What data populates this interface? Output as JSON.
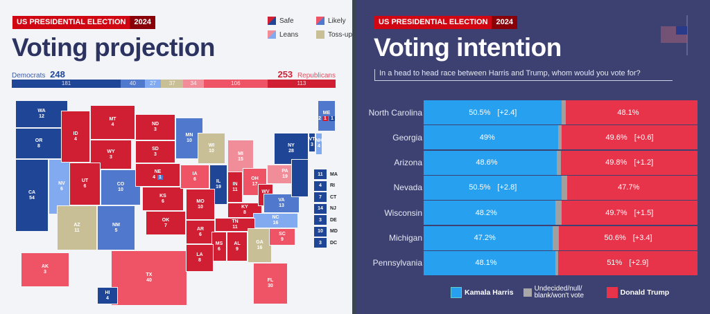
{
  "left": {
    "tag": {
      "label": "US PRESIDENTIAL ELECTION",
      "year": "2024"
    },
    "title": "Voting projection",
    "legend": [
      {
        "label": "Safe"
      },
      {
        "label": "Likely"
      },
      {
        "label": "Leans"
      },
      {
        "label": "Toss-up"
      }
    ],
    "democrats": {
      "label": "Democrats",
      "total": "248"
    },
    "republicans": {
      "label": "Republicans",
      "total": "253"
    }
  },
  "colors": {
    "safe_d": "#1f4597",
    "likely_d": "#5078cc",
    "lean_d": "#82aaf0",
    "tossup": "#c9bf97",
    "lean_r": "#f08d99",
    "likely_r": "#ee5466",
    "safe_r": "#d01f33"
  },
  "chart_data": [
    {
      "type": "bar",
      "title": "Voting projection",
      "stacked": true,
      "categories": [
        "Safe D",
        "Likely D",
        "Lean D",
        "Toss-up",
        "Lean R",
        "Likely R",
        "Safe R"
      ],
      "values": [
        181,
        40,
        27,
        37,
        34,
        106,
        113
      ],
      "states": [
        {
          "abbr": "WA",
          "votes": "12",
          "rating": "safe_d"
        },
        {
          "abbr": "OR",
          "votes": "8",
          "rating": "safe_d"
        },
        {
          "abbr": "CA",
          "votes": "54",
          "rating": "safe_d"
        },
        {
          "abbr": "NV",
          "votes": "6",
          "rating": "lean_d"
        },
        {
          "abbr": "ID",
          "votes": "4",
          "rating": "safe_r"
        },
        {
          "abbr": "MT",
          "votes": "4",
          "rating": "safe_r"
        },
        {
          "abbr": "WY",
          "votes": "3",
          "rating": "safe_r"
        },
        {
          "abbr": "UT",
          "votes": "6",
          "rating": "safe_r"
        },
        {
          "abbr": "CO",
          "votes": "10",
          "rating": "likely_d"
        },
        {
          "abbr": "AZ",
          "votes": "11",
          "rating": "tossup"
        },
        {
          "abbr": "NM",
          "votes": "5",
          "rating": "likely_d"
        },
        {
          "abbr": "ND",
          "votes": "3",
          "rating": "safe_r"
        },
        {
          "abbr": "SD",
          "votes": "3",
          "rating": "safe_r"
        },
        {
          "abbr": "NE",
          "votes": "4",
          "rating": "safe_r"
        },
        {
          "abbr": "KS",
          "votes": "6",
          "rating": "safe_r"
        },
        {
          "abbr": "OK",
          "votes": "7",
          "rating": "safe_r"
        },
        {
          "abbr": "TX",
          "votes": "40",
          "rating": "likely_r"
        },
        {
          "abbr": "AK",
          "votes": "3",
          "rating": "likely_r"
        },
        {
          "abbr": "HI",
          "votes": "4",
          "rating": "safe_d"
        },
        {
          "abbr": "MN",
          "votes": "10",
          "rating": "likely_d"
        },
        {
          "abbr": "WI",
          "votes": "10",
          "rating": "tossup"
        },
        {
          "abbr": "MI",
          "votes": "15",
          "rating": "lean_r"
        },
        {
          "abbr": "IA",
          "votes": "6",
          "rating": "likely_r"
        },
        {
          "abbr": "IL",
          "votes": "19",
          "rating": "safe_d"
        },
        {
          "abbr": "IN",
          "votes": "11",
          "rating": "safe_r"
        },
        {
          "abbr": "OH",
          "votes": "17",
          "rating": "likely_r"
        },
        {
          "abbr": "PA",
          "votes": "19",
          "rating": "lean_r"
        },
        {
          "abbr": "NY",
          "votes": "28",
          "rating": "safe_d"
        },
        {
          "abbr": "MO",
          "votes": "10",
          "rating": "safe_r"
        },
        {
          "abbr": "KY",
          "votes": "8",
          "rating": "safe_r"
        },
        {
          "abbr": "WV",
          "votes": "4",
          "rating": "safe_r"
        },
        {
          "abbr": "VA",
          "votes": "13",
          "rating": "likely_d"
        },
        {
          "abbr": "NC",
          "votes": "16",
          "rating": "lean_d"
        },
        {
          "abbr": "TN",
          "votes": "11",
          "rating": "safe_r"
        },
        {
          "abbr": "AR",
          "votes": "6",
          "rating": "safe_r"
        },
        {
          "abbr": "MS",
          "votes": "6",
          "rating": "safe_r"
        },
        {
          "abbr": "AL",
          "votes": "9",
          "rating": "safe_r"
        },
        {
          "abbr": "GA",
          "votes": "16",
          "rating": "tossup"
        },
        {
          "abbr": "SC",
          "votes": "9",
          "rating": "likely_r"
        },
        {
          "abbr": "LA",
          "votes": "8",
          "rating": "safe_r"
        },
        {
          "abbr": "FL",
          "votes": "30",
          "rating": "likely_r"
        },
        {
          "abbr": "VT",
          "votes": "3",
          "rating": "safe_d"
        },
        {
          "abbr": "NH",
          "votes": "4",
          "rating": "lean_d"
        },
        {
          "abbr": "ME",
          "votes": "2",
          "rating": "likely_d"
        }
      ],
      "maine_districts": [
        "1",
        "1"
      ],
      "nebraska_district": "1",
      "small_states": [
        {
          "abbr": "MA",
          "votes": "11"
        },
        {
          "abbr": "RI",
          "votes": "4"
        },
        {
          "abbr": "CT",
          "votes": "7"
        },
        {
          "abbr": "NJ",
          "votes": "14"
        },
        {
          "abbr": "DE",
          "votes": "3"
        },
        {
          "abbr": "MD",
          "votes": "10"
        },
        {
          "abbr": "DC",
          "votes": "3"
        }
      ]
    },
    {
      "type": "bar",
      "title": "Voting intention",
      "stacked": true,
      "orientation": "horizontal",
      "question": "In a head to head race between Harris and Trump, whom would you vote for?",
      "series_names": [
        "Kamala Harris",
        "Undecided/null/ blank/won't vote",
        "Donald Trump"
      ],
      "rows": [
        {
          "state": "North Carolina",
          "harris": 50.5,
          "harris_label": "50.5%",
          "harris_lead": "[+2.4]",
          "trump": 48.1,
          "trump_label": "48.1%",
          "trump_lead": ""
        },
        {
          "state": "Georgia",
          "harris": 49,
          "harris_label": "49%",
          "harris_lead": "",
          "trump": 49.6,
          "trump_label": "49.6%",
          "trump_lead": "[+0.6]"
        },
        {
          "state": "Arizona",
          "harris": 48.6,
          "harris_label": "48.6%",
          "harris_lead": "",
          "trump": 49.8,
          "trump_label": "49.8%",
          "trump_lead": "[+1.2]"
        },
        {
          "state": "Nevada",
          "harris": 50.5,
          "harris_label": "50.5%",
          "harris_lead": "[+2.8]",
          "trump": 47.7,
          "trump_label": "47.7%",
          "trump_lead": ""
        },
        {
          "state": "Wisconsin",
          "harris": 48.2,
          "harris_label": "48.2%",
          "harris_lead": "",
          "trump": 49.7,
          "trump_label": "49.7%",
          "trump_lead": "[+1.5]"
        },
        {
          "state": "Michigan",
          "harris": 47.2,
          "harris_label": "47.2%",
          "harris_lead": "",
          "trump": 50.6,
          "trump_label": "50.6%",
          "trump_lead": "[+3.4]"
        },
        {
          "state": "Pennsylvania",
          "harris": 48.1,
          "harris_label": "48.1%",
          "harris_lead": "",
          "trump": 51,
          "trump_label": "51%",
          "trump_lead": "[+2.9]"
        }
      ]
    }
  ],
  "right": {
    "tag": {
      "label": "US PRESIDENTIAL ELECTION",
      "year": "2024"
    },
    "title": "Voting intention",
    "legend": {
      "harris": "Kamala Harris",
      "undecided": "Undecided/null/ blank/won't vote",
      "trump": "Donald Trump"
    }
  }
}
